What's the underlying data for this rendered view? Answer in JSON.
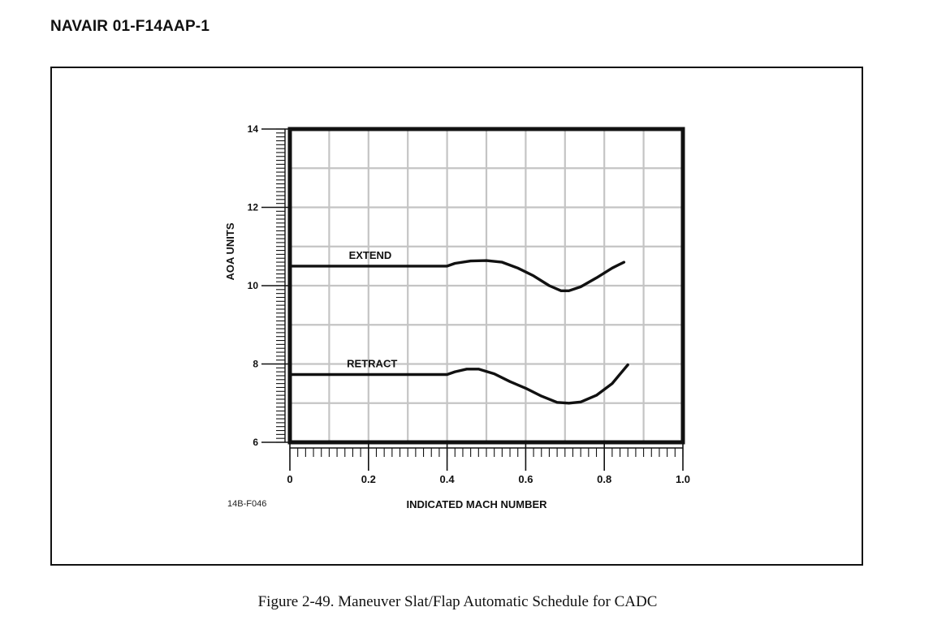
{
  "document": {
    "header": "NAVAIR 01-F14AAP-1",
    "figure_code": "14B-F046",
    "caption": "Figure 2-49.  Maneuver Slat/Flap Automatic Schedule for CADC"
  },
  "colors": {
    "ink": "#111111",
    "grid": "#c4c4c4"
  },
  "chart_data": {
    "type": "line",
    "title": "",
    "xlabel": "INDICATED MACH NUMBER",
    "ylabel": "AOA UNITS",
    "xlim": [
      0,
      1.0
    ],
    "ylim": [
      6,
      14
    ],
    "x_ticks": [
      {
        "value": 0,
        "label": "0"
      },
      {
        "value": 0.2,
        "label": "0.2"
      },
      {
        "value": 0.4,
        "label": "0.4"
      },
      {
        "value": 0.6,
        "label": "0.6"
      },
      {
        "value": 0.8,
        "label": "0.8"
      },
      {
        "value": 1.0,
        "label": "1.0"
      }
    ],
    "y_ticks": [
      {
        "value": 6,
        "label": "6"
      },
      {
        "value": 8,
        "label": "8"
      },
      {
        "value": 10,
        "label": "10"
      },
      {
        "value": 12,
        "label": "12"
      },
      {
        "value": 14,
        "label": "14"
      }
    ],
    "grid": true,
    "series": [
      {
        "name": "EXTEND",
        "x": [
          0,
          0.2,
          0.4,
          0.42,
          0.46,
          0.5,
          0.54,
          0.58,
          0.62,
          0.66,
          0.69,
          0.71,
          0.74,
          0.78,
          0.82,
          0.85
        ],
        "y": [
          10.5,
          10.5,
          10.5,
          10.57,
          10.63,
          10.64,
          10.6,
          10.45,
          10.25,
          10.0,
          9.87,
          9.87,
          9.97,
          10.2,
          10.45,
          10.6
        ]
      },
      {
        "name": "RETRACT",
        "x": [
          0,
          0.2,
          0.4,
          0.42,
          0.45,
          0.48,
          0.52,
          0.56,
          0.6,
          0.64,
          0.68,
          0.71,
          0.74,
          0.78,
          0.82,
          0.86
        ],
        "y": [
          7.73,
          7.73,
          7.73,
          7.8,
          7.87,
          7.87,
          7.75,
          7.55,
          7.38,
          7.18,
          7.02,
          7.0,
          7.03,
          7.2,
          7.5,
          7.98
        ]
      }
    ]
  }
}
